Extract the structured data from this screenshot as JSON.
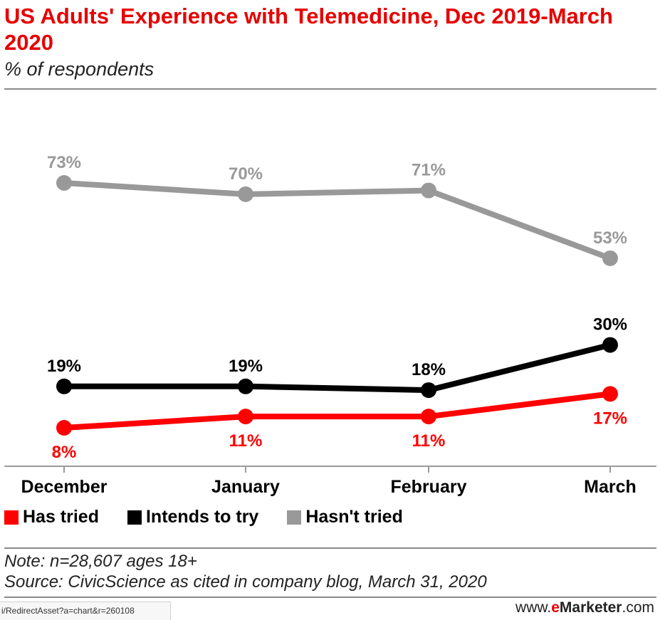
{
  "header": {
    "title": "US Adults' Experience with Telemedicine, Dec 2019-March 2020",
    "subtitle": "% of respondents"
  },
  "chart_data": {
    "type": "line",
    "title": "US Adults' Experience with Telemedicine, Dec 2019-March 2020",
    "subtitle": "% of respondents",
    "categories": [
      "December",
      "January",
      "February",
      "March"
    ],
    "ylim": [
      0,
      80
    ],
    "grid": false,
    "legend_position": "bottom",
    "series": [
      {
        "name": "Has tried",
        "color": "#ff0000",
        "values": [
          8,
          11,
          11,
          17
        ],
        "labels": [
          "8%",
          "11%",
          "11%",
          "17%"
        ]
      },
      {
        "name": "Intends to try",
        "color": "#000000",
        "values": [
          19,
          19,
          18,
          30
        ],
        "labels": [
          "19%",
          "19%",
          "18%",
          "30%"
        ]
      },
      {
        "name": "Hasn't tried",
        "color": "#999999",
        "values": [
          73,
          70,
          71,
          53
        ],
        "labels": [
          "73%",
          "70%",
          "71%",
          "53%"
        ]
      }
    ]
  },
  "footer": {
    "note": "Note: n=28,607 ages 18+",
    "source": "Source: CivicScience as cited in company blog, March 31, 2020",
    "asset_id": "i/RedirectAsset?a=chart&r=260108",
    "brand_prefix": "www.",
    "brand_e": "e",
    "brand_name": "Marketer",
    "brand_suffix": ".com"
  }
}
